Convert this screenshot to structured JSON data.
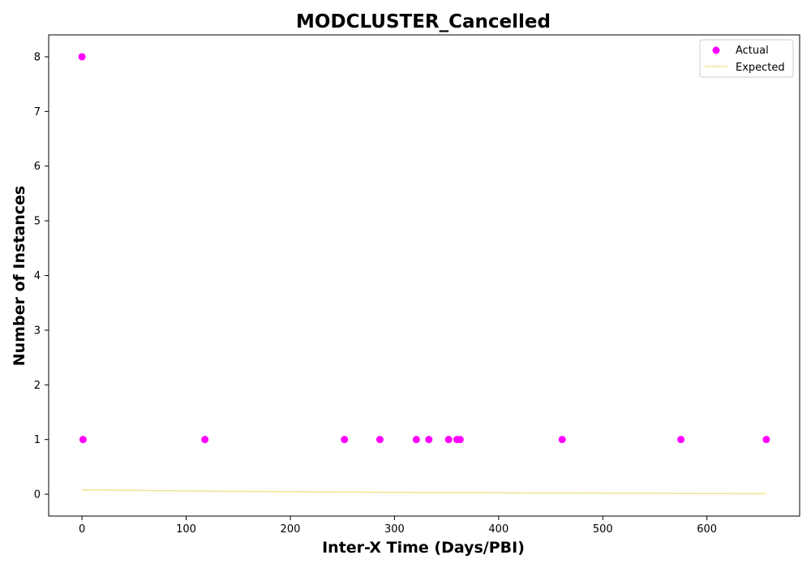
{
  "chart_data": {
    "type": "scatter",
    "title": "MODCLUSTER_Cancelled",
    "xlabel": "Inter-X Time (Days/PBI)",
    "ylabel": "Number of Instances",
    "xlim": [
      -32,
      689
    ],
    "ylim": [
      -0.4,
      8.4
    ],
    "xticks": [
      0,
      100,
      200,
      300,
      400,
      500,
      600
    ],
    "yticks": [
      0,
      1,
      2,
      3,
      4,
      5,
      6,
      7,
      8
    ],
    "grid": false,
    "legend": "top-right",
    "series": [
      {
        "name": "Actual",
        "kind": "scatter",
        "color": "#ff00ff",
        "x": [
          0,
          1,
          118,
          252,
          286,
          321,
          333,
          352,
          360,
          363,
          461,
          575,
          657
        ],
        "y": [
          8,
          1,
          1,
          1,
          1,
          1,
          1,
          1,
          1,
          1,
          1,
          1,
          1
        ]
      },
      {
        "name": "Expected",
        "kind": "line",
        "color": "#f0e68c",
        "x": [
          0,
          100,
          200,
          300,
          400,
          500,
          600,
          657
        ],
        "y": [
          0.08,
          0.06,
          0.045,
          0.035,
          0.025,
          0.018,
          0.012,
          0.01
        ]
      }
    ]
  }
}
